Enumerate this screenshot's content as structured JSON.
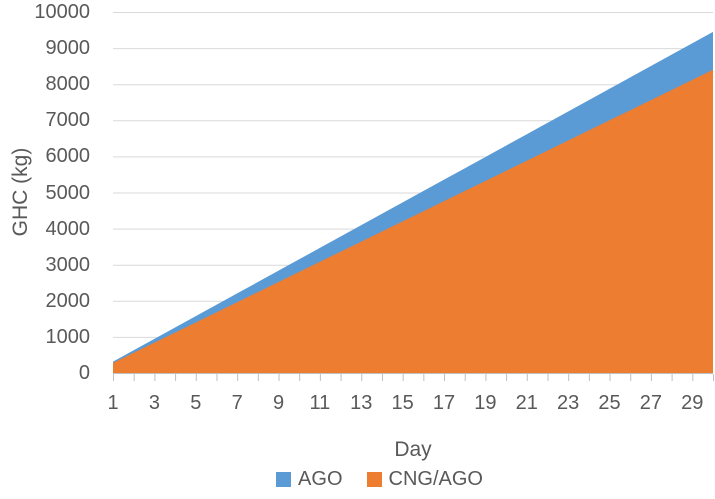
{
  "chart_data": {
    "type": "area",
    "title": "",
    "xlabel": "Day",
    "ylabel": "GHC (kg)",
    "x": [
      1,
      2,
      3,
      4,
      5,
      6,
      7,
      8,
      9,
      10,
      11,
      12,
      13,
      14,
      15,
      16,
      17,
      18,
      19,
      20,
      21,
      22,
      23,
      24,
      25,
      26,
      27,
      28,
      29,
      30
    ],
    "x_tick_labels": [
      1,
      3,
      5,
      7,
      9,
      11,
      13,
      15,
      17,
      19,
      21,
      23,
      25,
      27,
      29
    ],
    "y_ticks": [
      0,
      1000,
      2000,
      3000,
      4000,
      5000,
      6000,
      7000,
      8000,
      9000,
      10000
    ],
    "ylim": [
      0,
      10000
    ],
    "grid": true,
    "overlapping_areas": true,
    "legend_position": "bottom",
    "series": [
      {
        "name": "AGO",
        "color": "#5B9BD5",
        "values": [
          315,
          630,
          945,
          1260,
          1575,
          1890,
          2205,
          2520,
          2835,
          3150,
          3465,
          3780,
          4095,
          4410,
          4725,
          5040,
          5355,
          5670,
          5985,
          6300,
          6615,
          6930,
          7245,
          7560,
          7875,
          8190,
          8505,
          8820,
          9135,
          9450
        ]
      },
      {
        "name": "CNG/AGO",
        "color": "#ED7D31",
        "values": [
          280,
          560,
          840,
          1120,
          1400,
          1680,
          1960,
          2240,
          2520,
          2800,
          3080,
          3360,
          3640,
          3920,
          4200,
          4480,
          4760,
          5040,
          5320,
          5600,
          5880,
          6160,
          6440,
          6720,
          7000,
          7280,
          7560,
          7840,
          8120,
          8400
        ]
      }
    ],
    "grid_color": "#D9D9D9",
    "axis_color": "#BFBFBF",
    "text_color": "#595959"
  }
}
